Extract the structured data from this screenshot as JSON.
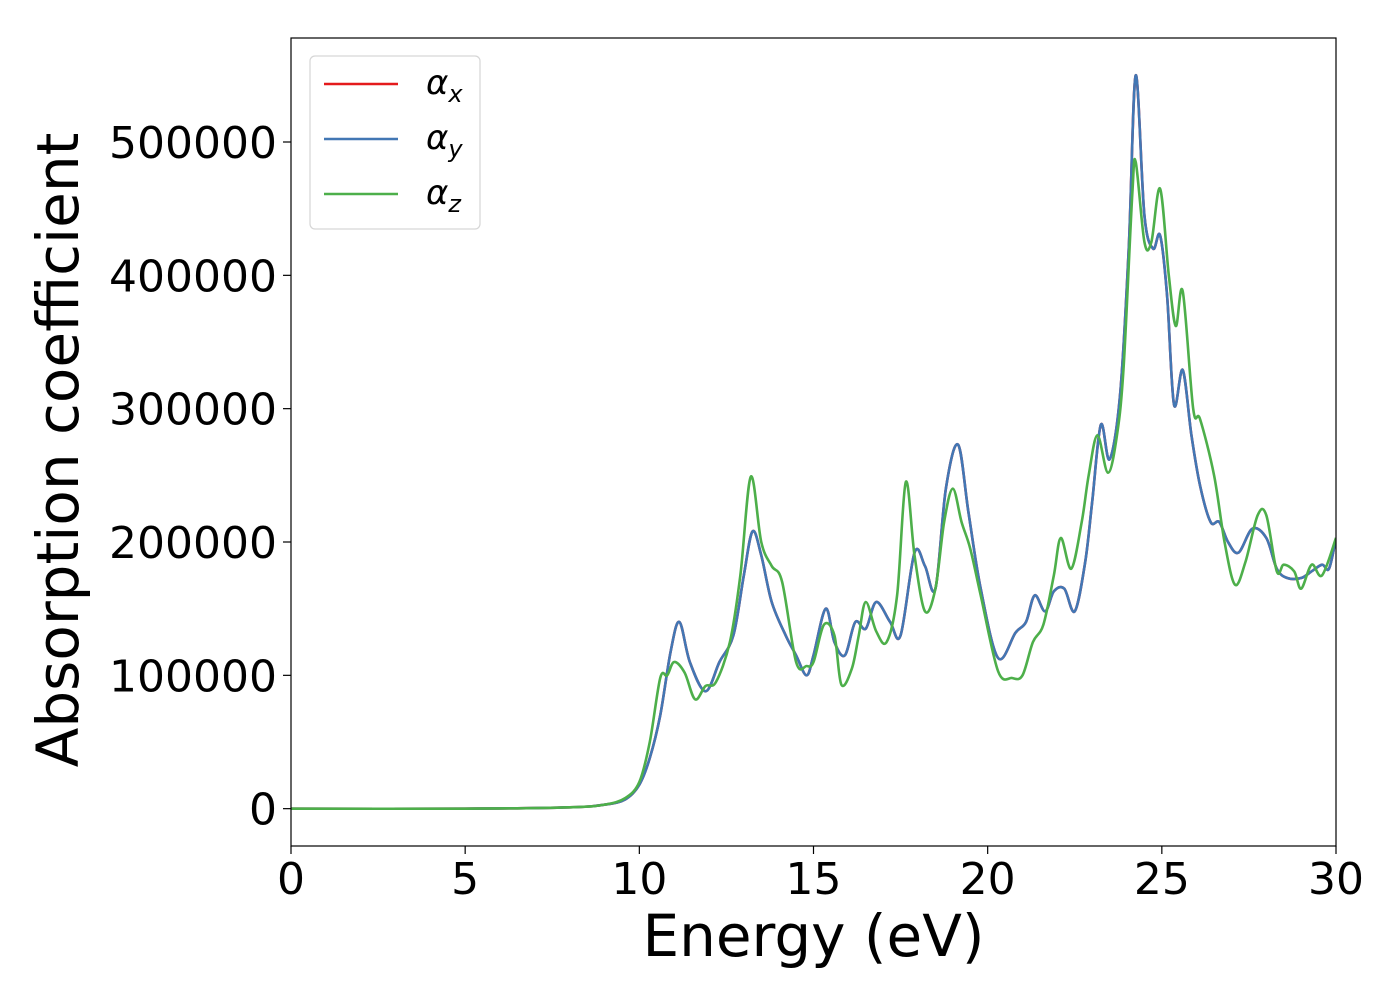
{
  "chart_data": {
    "type": "line",
    "title": "",
    "xlabel": "Energy (eV)",
    "ylabel": "Absorption coefficient",
    "xlim": [
      0,
      30
    ],
    "ylim": [
      -28000,
      578000
    ],
    "xticks": [
      0,
      5,
      10,
      15,
      20,
      25,
      30
    ],
    "yticks": [
      0,
      100000,
      200000,
      300000,
      400000,
      500000
    ],
    "grid": false,
    "legend_position": "top-left",
    "series": [
      {
        "name": "α",
        "subscript": "x",
        "color": "#e41a1c",
        "points": [
          [
            0,
            0
          ],
          [
            5,
            0
          ],
          [
            8,
            1000
          ],
          [
            9,
            3000
          ],
          [
            9.6,
            7000
          ],
          [
            10,
            18000
          ],
          [
            10.3,
            38000
          ],
          [
            10.6,
            70000
          ],
          [
            10.9,
            118000
          ],
          [
            11.15,
            140000
          ],
          [
            11.45,
            110000
          ],
          [
            11.9,
            88000
          ],
          [
            12.3,
            110000
          ],
          [
            12.7,
            130000
          ],
          [
            13.0,
            175000
          ],
          [
            13.25,
            208000
          ],
          [
            13.5,
            190000
          ],
          [
            13.8,
            155000
          ],
          [
            14.2,
            130000
          ],
          [
            14.5,
            115000
          ],
          [
            14.8,
            100000
          ],
          [
            15.0,
            115000
          ],
          [
            15.35,
            150000
          ],
          [
            15.6,
            125000
          ],
          [
            15.9,
            115000
          ],
          [
            16.2,
            140000
          ],
          [
            16.5,
            135000
          ],
          [
            16.8,
            155000
          ],
          [
            17.2,
            140000
          ],
          [
            17.5,
            130000
          ],
          [
            17.9,
            192000
          ],
          [
            18.2,
            182000
          ],
          [
            18.5,
            165000
          ],
          [
            18.8,
            240000
          ],
          [
            19.15,
            273000
          ],
          [
            19.45,
            222000
          ],
          [
            19.8,
            165000
          ],
          [
            20.3,
            113000
          ],
          [
            20.8,
            132000
          ],
          [
            21.1,
            140000
          ],
          [
            21.35,
            160000
          ],
          [
            21.65,
            148000
          ],
          [
            21.9,
            163000
          ],
          [
            22.2,
            165000
          ],
          [
            22.5,
            148000
          ],
          [
            22.8,
            185000
          ],
          [
            23.0,
            230000
          ],
          [
            23.25,
            288000
          ],
          [
            23.5,
            262000
          ],
          [
            23.8,
            310000
          ],
          [
            24.05,
            420000
          ],
          [
            24.25,
            550000
          ],
          [
            24.5,
            445000
          ],
          [
            24.75,
            420000
          ],
          [
            24.95,
            430000
          ],
          [
            25.15,
            385000
          ],
          [
            25.35,
            303000
          ],
          [
            25.6,
            329000
          ],
          [
            25.85,
            280000
          ],
          [
            26.1,
            242000
          ],
          [
            26.4,
            215000
          ],
          [
            26.65,
            215000
          ],
          [
            26.9,
            200000
          ],
          [
            27.2,
            192000
          ],
          [
            27.6,
            210000
          ],
          [
            28.0,
            203000
          ],
          [
            28.3,
            180000
          ],
          [
            28.6,
            173000
          ],
          [
            29.0,
            173000
          ],
          [
            29.3,
            178000
          ],
          [
            29.6,
            183000
          ],
          [
            29.8,
            180000
          ],
          [
            30.0,
            203000
          ]
        ]
      },
      {
        "name": "α",
        "subscript": "y",
        "color": "#4277b4",
        "points": [
          [
            0,
            0
          ],
          [
            5,
            0
          ],
          [
            8,
            1000
          ],
          [
            9,
            3000
          ],
          [
            9.6,
            7000
          ],
          [
            10,
            18000
          ],
          [
            10.3,
            38000
          ],
          [
            10.6,
            70000
          ],
          [
            10.9,
            118000
          ],
          [
            11.15,
            140000
          ],
          [
            11.45,
            110000
          ],
          [
            11.9,
            88000
          ],
          [
            12.3,
            110000
          ],
          [
            12.7,
            130000
          ],
          [
            13.0,
            175000
          ],
          [
            13.25,
            208000
          ],
          [
            13.5,
            190000
          ],
          [
            13.8,
            155000
          ],
          [
            14.2,
            130000
          ],
          [
            14.5,
            115000
          ],
          [
            14.8,
            100000
          ],
          [
            15.0,
            115000
          ],
          [
            15.35,
            150000
          ],
          [
            15.6,
            125000
          ],
          [
            15.9,
            115000
          ],
          [
            16.2,
            140000
          ],
          [
            16.5,
            135000
          ],
          [
            16.8,
            155000
          ],
          [
            17.2,
            140000
          ],
          [
            17.5,
            130000
          ],
          [
            17.9,
            192000
          ],
          [
            18.2,
            182000
          ],
          [
            18.5,
            165000
          ],
          [
            18.8,
            240000
          ],
          [
            19.15,
            273000
          ],
          [
            19.45,
            222000
          ],
          [
            19.8,
            165000
          ],
          [
            20.3,
            113000
          ],
          [
            20.8,
            132000
          ],
          [
            21.1,
            140000
          ],
          [
            21.35,
            160000
          ],
          [
            21.65,
            148000
          ],
          [
            21.9,
            163000
          ],
          [
            22.2,
            165000
          ],
          [
            22.5,
            148000
          ],
          [
            22.8,
            185000
          ],
          [
            23.0,
            230000
          ],
          [
            23.25,
            288000
          ],
          [
            23.5,
            262000
          ],
          [
            23.8,
            310000
          ],
          [
            24.05,
            420000
          ],
          [
            24.25,
            550000
          ],
          [
            24.5,
            445000
          ],
          [
            24.75,
            420000
          ],
          [
            24.95,
            430000
          ],
          [
            25.15,
            385000
          ],
          [
            25.35,
            303000
          ],
          [
            25.6,
            329000
          ],
          [
            25.85,
            280000
          ],
          [
            26.1,
            242000
          ],
          [
            26.4,
            215000
          ],
          [
            26.65,
            215000
          ],
          [
            26.9,
            200000
          ],
          [
            27.2,
            192000
          ],
          [
            27.6,
            210000
          ],
          [
            28.0,
            203000
          ],
          [
            28.3,
            180000
          ],
          [
            28.6,
            173000
          ],
          [
            29.0,
            173000
          ],
          [
            29.3,
            178000
          ],
          [
            29.6,
            183000
          ],
          [
            29.8,
            180000
          ],
          [
            30.0,
            203000
          ]
        ]
      },
      {
        "name": "α",
        "subscript": "z",
        "color": "#4daf4a",
        "points": [
          [
            0,
            0
          ],
          [
            5,
            0
          ],
          [
            8,
            1000
          ],
          [
            9,
            3000
          ],
          [
            9.6,
            8000
          ],
          [
            10,
            20000
          ],
          [
            10.3,
            50000
          ],
          [
            10.6,
            98000
          ],
          [
            10.8,
            100000
          ],
          [
            11.0,
            110000
          ],
          [
            11.3,
            102000
          ],
          [
            11.6,
            82000
          ],
          [
            11.9,
            92000
          ],
          [
            12.2,
            95000
          ],
          [
            12.6,
            125000
          ],
          [
            12.9,
            175000
          ],
          [
            13.2,
            249000
          ],
          [
            13.5,
            200000
          ],
          [
            13.8,
            182000
          ],
          [
            14.1,
            170000
          ],
          [
            14.5,
            110000
          ],
          [
            14.8,
            107000
          ],
          [
            15.0,
            110000
          ],
          [
            15.3,
            138000
          ],
          [
            15.6,
            130000
          ],
          [
            15.8,
            93000
          ],
          [
            16.1,
            105000
          ],
          [
            16.3,
            130000
          ],
          [
            16.5,
            155000
          ],
          [
            16.8,
            133000
          ],
          [
            17.1,
            125000
          ],
          [
            17.4,
            160000
          ],
          [
            17.65,
            245000
          ],
          [
            17.9,
            190000
          ],
          [
            18.2,
            148000
          ],
          [
            18.5,
            165000
          ],
          [
            18.75,
            215000
          ],
          [
            19.0,
            240000
          ],
          [
            19.25,
            215000
          ],
          [
            19.5,
            195000
          ],
          [
            19.8,
            160000
          ],
          [
            20.3,
            103000
          ],
          [
            20.7,
            98000
          ],
          [
            21.0,
            100000
          ],
          [
            21.3,
            125000
          ],
          [
            21.6,
            138000
          ],
          [
            21.9,
            175000
          ],
          [
            22.1,
            203000
          ],
          [
            22.4,
            180000
          ],
          [
            22.7,
            215000
          ],
          [
            22.9,
            250000
          ],
          [
            23.15,
            280000
          ],
          [
            23.45,
            252000
          ],
          [
            23.7,
            278000
          ],
          [
            23.9,
            330000
          ],
          [
            24.15,
            460000
          ],
          [
            24.25,
            485000
          ],
          [
            24.5,
            425000
          ],
          [
            24.7,
            425000
          ],
          [
            24.95,
            465000
          ],
          [
            25.2,
            400000
          ],
          [
            25.4,
            362000
          ],
          [
            25.6,
            388000
          ],
          [
            25.9,
            300000
          ],
          [
            26.1,
            292000
          ],
          [
            26.5,
            250000
          ],
          [
            26.8,
            200000
          ],
          [
            27.1,
            168000
          ],
          [
            27.4,
            185000
          ],
          [
            27.75,
            220000
          ],
          [
            28.0,
            220000
          ],
          [
            28.3,
            178000
          ],
          [
            28.5,
            183000
          ],
          [
            28.8,
            178000
          ],
          [
            29.0,
            165000
          ],
          [
            29.3,
            183000
          ],
          [
            29.6,
            175000
          ],
          [
            30.0,
            203000
          ]
        ]
      }
    ]
  }
}
